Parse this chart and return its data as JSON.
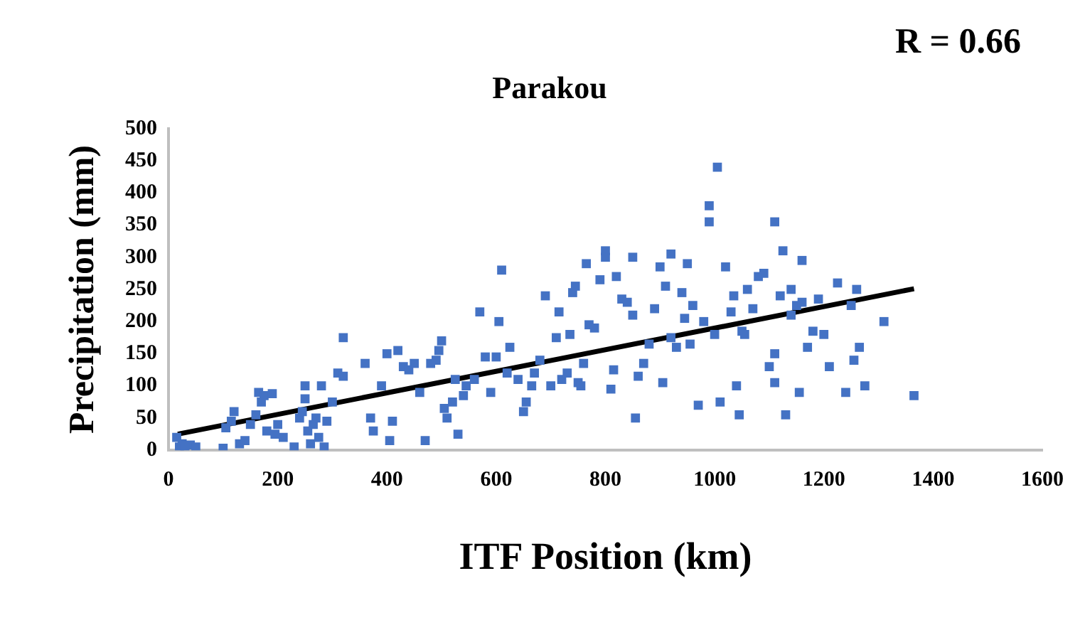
{
  "chart_data": {
    "type": "scatter",
    "title": "Parakou",
    "xlabel": "ITF Position (km)",
    "ylabel": "Precipitation (mm)",
    "annotations": [
      "R = 0.66"
    ],
    "xlim": [
      0,
      1600
    ],
    "xticks": [
      0,
      200,
      400,
      600,
      800,
      1000,
      1200,
      1400,
      1600
    ],
    "ylim": [
      0,
      500
    ],
    "yticks": [
      0,
      50,
      100,
      150,
      200,
      250,
      300,
      350,
      400,
      450,
      500
    ],
    "grid": false,
    "legend": false,
    "series": [
      {
        "type": "scatter",
        "marker": "square",
        "color": "#4472c4",
        "x": [
          15,
          20,
          25,
          30,
          40,
          50,
          100,
          105,
          115,
          120,
          130,
          140,
          150,
          160,
          165,
          170,
          175,
          180,
          190,
          195,
          200,
          210,
          230,
          240,
          245,
          250,
          250,
          255,
          260,
          265,
          270,
          275,
          280,
          285,
          290,
          300,
          310,
          320,
          320,
          360,
          370,
          375,
          390,
          400,
          405,
          410,
          420,
          430,
          440,
          450,
          460,
          470,
          480,
          490,
          495,
          500,
          505,
          510,
          520,
          525,
          530,
          540,
          545,
          560,
          570,
          580,
          590,
          600,
          605,
          610,
          620,
          625,
          640,
          650,
          655,
          665,
          670,
          680,
          690,
          700,
          710,
          715,
          720,
          730,
          735,
          740,
          745,
          750,
          755,
          760,
          765,
          770,
          780,
          790,
          800,
          800,
          810,
          815,
          820,
          830,
          840,
          850,
          850,
          855,
          860,
          870,
          880,
          890,
          900,
          905,
          910,
          920,
          920,
          930,
          940,
          945,
          950,
          955,
          960,
          970,
          980,
          990,
          990,
          1005,
          1000,
          1010,
          1020,
          1030,
          1035,
          1040,
          1045,
          1050,
          1055,
          1060,
          1070,
          1080,
          1090,
          1100,
          1110,
          1110,
          1120,
          1125,
          1130,
          1140,
          1140,
          1150,
          1155,
          1160,
          1160,
          1170,
          1180,
          1190,
          1200,
          1210,
          1225,
          1240,
          1250,
          1255,
          1260,
          1265,
          1275,
          1310,
          1365,
          1110
        ],
        "values": [
          20,
          5,
          10,
          3,
          8,
          5,
          3,
          35,
          45,
          60,
          10,
          15,
          40,
          55,
          90,
          75,
          85,
          30,
          88,
          25,
          40,
          20,
          5,
          50,
          60,
          80,
          100,
          30,
          10,
          40,
          50,
          20,
          100,
          5,
          45,
          75,
          120,
          115,
          175,
          135,
          50,
          30,
          100,
          150,
          15,
          45,
          155,
          130,
          125,
          135,
          90,
          15,
          135,
          140,
          155,
          170,
          65,
          50,
          75,
          110,
          25,
          85,
          100,
          110,
          215,
          145,
          90,
          145,
          200,
          280,
          120,
          160,
          110,
          60,
          75,
          100,
          120,
          140,
          240,
          100,
          175,
          215,
          110,
          120,
          180,
          245,
          255,
          105,
          100,
          135,
          290,
          195,
          190,
          265,
          310,
          300,
          95,
          125,
          270,
          235,
          230,
          210,
          300,
          50,
          115,
          135,
          165,
          220,
          285,
          105,
          255,
          175,
          305,
          160,
          245,
          205,
          290,
          165,
          225,
          70,
          200,
          380,
          355,
          440,
          180,
          75,
          285,
          215,
          240,
          100,
          55,
          185,
          180,
          250,
          220,
          270,
          275,
          130,
          105,
          355,
          240,
          310,
          55,
          210,
          250,
          225,
          90,
          230,
          295,
          160,
          185,
          235,
          180,
          130,
          260,
          90,
          225,
          140,
          250,
          160,
          100,
          200,
          85,
          150
        ]
      },
      {
        "type": "line",
        "color": "#000000",
        "x": [
          17,
          1365
        ],
        "values": [
          25,
          251
        ]
      }
    ]
  }
}
